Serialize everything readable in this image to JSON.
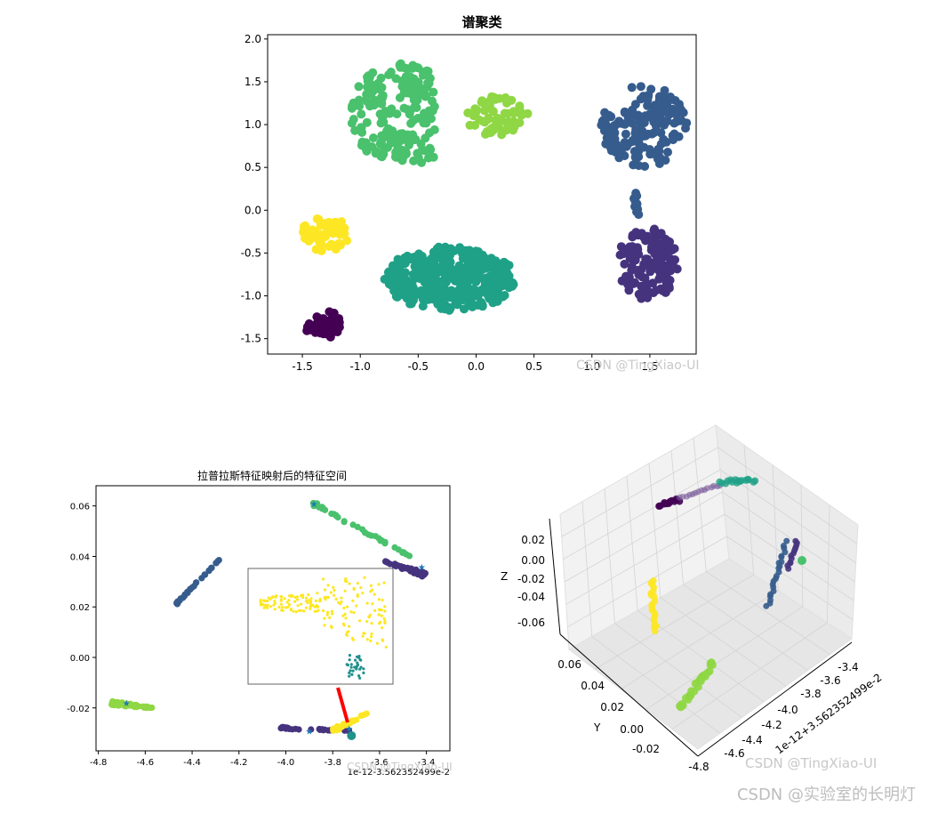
{
  "chart_data": [
    {
      "type": "scatter",
      "title": "谱聚类",
      "xlim": [
        -1.8,
        1.9
      ],
      "ylim": [
        -1.68,
        2.05
      ],
      "xticks": [
        -1.5,
        -1.0,
        -0.5,
        0.0,
        0.5,
        1.0,
        1.5
      ],
      "yticks": [
        -1.5,
        -1.0,
        -0.5,
        0.0,
        0.5,
        1.0,
        1.5,
        2.0
      ],
      "xtick_labels": [
        "-1.5",
        "-1.0",
        "-0.5",
        "0.0",
        "0.5",
        "1.0",
        "1.5"
      ],
      "ytick_labels": [
        "-1.5",
        "-1.0",
        "-0.5",
        "0.0",
        "0.5",
        "1.0",
        "1.5",
        "2.0"
      ],
      "grid": false,
      "clusters": [
        {
          "color": "#440154",
          "shape": "ellipse",
          "center": [
            -1.32,
            -1.33
          ],
          "radius": [
            0.16,
            0.17
          ],
          "n": 45
        },
        {
          "color": "#46337e",
          "shape": "ellipse",
          "center": [
            1.48,
            -0.62
          ],
          "radius": [
            0.26,
            0.43
          ],
          "n": 130
        },
        {
          "color": "#365c8d",
          "shape": "ellipse",
          "center": [
            1.45,
            0.98
          ],
          "radius": [
            0.37,
            0.48
          ],
          "n": 170
        },
        {
          "color": "#1fa187",
          "shape": "ellipse",
          "center": [
            -0.22,
            -0.8
          ],
          "radius": [
            0.57,
            0.38
          ],
          "n": 360
        },
        {
          "color": "#4ac16d",
          "shape": "ellipse",
          "center": [
            -0.62,
            1.12
          ],
          "radius": [
            0.47,
            0.6
          ],
          "n": 210
        },
        {
          "color": "#8fd744",
          "shape": "ellipse",
          "center": [
            0.18,
            1.1
          ],
          "radius": [
            0.27,
            0.23
          ],
          "n": 70
        },
        {
          "color": "#fde725",
          "shape": "ellipse",
          "center": [
            -1.3,
            -0.28
          ],
          "radius": [
            0.21,
            0.2
          ],
          "n": 55
        }
      ],
      "bridge": {
        "color": "#365c8d",
        "from": [
          1.37,
          0.2
        ],
        "to": [
          1.39,
          -0.05
        ]
      },
      "watermark": "CSDN @TingXiao-UI"
    },
    {
      "type": "scatter",
      "title": "拉普拉斯特征映射后的特征空间",
      "xlim": [
        -4.81,
        -3.3
      ],
      "ylim": [
        -0.037,
        0.068
      ],
      "xticks": [
        -4.8,
        -4.6,
        -4.4,
        -4.2,
        -4.0,
        -3.8,
        -3.6,
        -3.4
      ],
      "yticks": [
        -0.02,
        0.0,
        0.02,
        0.04,
        0.06
      ],
      "xtick_labels": [
        "-4.8",
        "-4.6",
        "-4.4",
        "-4.2",
        "-4.0",
        "-3.8",
        "-3.6",
        "-3.4"
      ],
      "ytick_labels": [
        "-0.02",
        "0.00",
        "0.02",
        "0.04",
        "0.06"
      ],
      "offset_label": "1e-12-3.562352499e-2",
      "grid": false,
      "bands": [
        {
          "color": "#46337e",
          "from": [
            -3.41,
            0.033
          ],
          "to": [
            -3.58,
            0.038
          ],
          "n": 45,
          "spread": [
            0.015,
            0.0018
          ]
        },
        {
          "color": "#4ac16d",
          "from": [
            -3.88,
            0.061
          ],
          "to": [
            -3.47,
            0.04
          ],
          "n": 40,
          "spread": [
            0.012,
            0.0014
          ]
        },
        {
          "color": "#365c8d",
          "from": [
            -4.47,
            0.021
          ],
          "to": [
            -4.27,
            0.04
          ],
          "n": 32,
          "spread": [
            0.006,
            0.0008
          ]
        },
        {
          "color": "#8fd744",
          "from": [
            -4.74,
            -0.018
          ],
          "to": [
            -4.57,
            -0.02
          ],
          "n": 55,
          "spread": [
            0.01,
            0.0016
          ]
        },
        {
          "color": "#46337e",
          "from": [
            -4.02,
            -0.028
          ],
          "to": [
            -3.72,
            -0.029
          ],
          "n": 30,
          "spread": [
            0.004,
            0.0008
          ]
        },
        {
          "color": "#fde725",
          "from": [
            -3.8,
            -0.029
          ],
          "to": [
            -3.65,
            -0.022
          ],
          "n": 30,
          "spread": [
            0.006,
            0.0016
          ]
        }
      ],
      "cluster_centers": [
        {
          "x": -3.42,
          "y": 0.036
        },
        {
          "x": -3.88,
          "y": 0.061
        },
        {
          "x": -4.68,
          "y": -0.018
        },
        {
          "x": -3.9,
          "y": -0.029
        },
        {
          "x": -3.73,
          "y": -0.028
        }
      ],
      "inset": {
        "yellow": {
          "color": "#fde725",
          "n": 190
        },
        "teal": {
          "color": "#1f918c",
          "n": 30
        }
      },
      "arrow_color": "#ff0000",
      "watermark": "CSDN @TingXiao-UI"
    },
    {
      "type": "scatter",
      "projection": "3d",
      "xlabel": "",
      "ylabel": "Y",
      "zlabel": "Z",
      "offset_label": "1e-12+3.562352499e-2",
      "xticks": [
        "-4.8",
        "-4.6",
        "-4.4",
        "-4.2",
        "-4.0",
        "-3.8",
        "-3.6",
        "-3.4"
      ],
      "yticks": [
        "-0.02",
        "0.00",
        "0.02",
        "0.04",
        "0.06"
      ],
      "zticks": [
        "-0.06",
        "-0.04",
        "-0.02",
        "0.00",
        "0.02"
      ],
      "grid": true,
      "watermark": "CSDN @TingXiao-UI"
    }
  ],
  "watermark_main": "CSDN @实验室的长明灯"
}
